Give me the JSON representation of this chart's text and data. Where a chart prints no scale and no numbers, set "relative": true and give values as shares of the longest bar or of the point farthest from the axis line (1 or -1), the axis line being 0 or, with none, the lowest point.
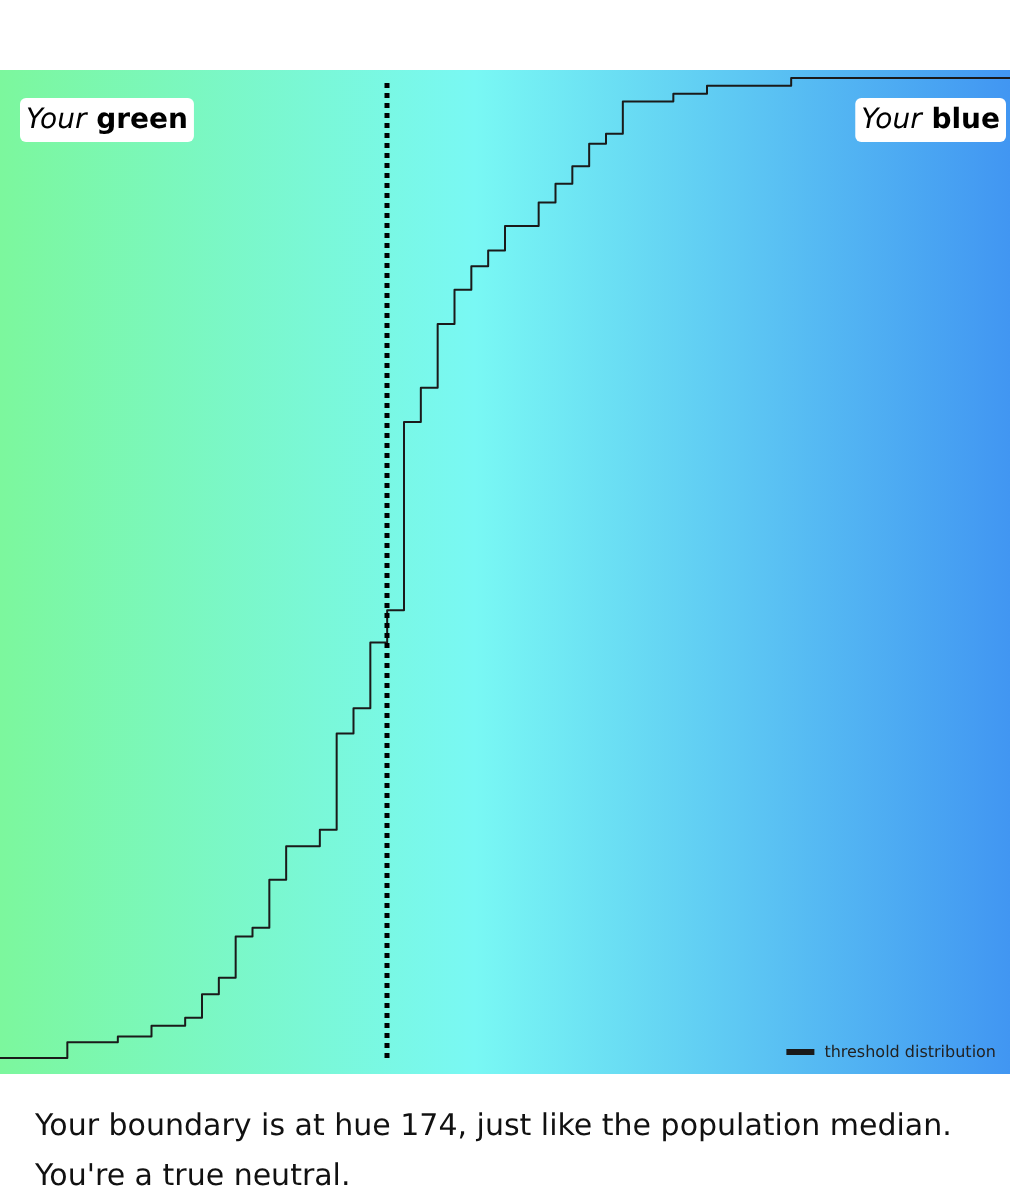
{
  "chart_data": {
    "type": "step",
    "relative": true,
    "tick_labels": false,
    "legend": "bottom right",
    "line_style": "solid",
    "categories": [
      null,
      null,
      null,
      null,
      null,
      null,
      null,
      null,
      null,
      null,
      null,
      null,
      null,
      null,
      null,
      null,
      null,
      null,
      null,
      null,
      null,
      null,
      null,
      null,
      null,
      null,
      null,
      null,
      null,
      null,
      null,
      null,
      null,
      null,
      null,
      null,
      null,
      null,
      null,
      null,
      null,
      null,
      null,
      null,
      null,
      null,
      null,
      null,
      null,
      null,
      null,
      null,
      null,
      null,
      null,
      null,
      null,
      null,
      null,
      null,
      null
    ],
    "series": [
      {
        "name": "threshold distribution",
        "color": "#1a1a1a",
        "values": [
          0,
          0,
          0,
          0,
          0.016,
          0.016,
          0.016,
          0.022,
          0.022,
          0.033,
          0.033,
          0.041,
          0.065,
          0.082,
          0.124,
          0.133,
          0.182,
          0.216,
          0.216,
          0.233,
          0.331,
          0.357,
          0.424,
          0.457,
          0.649,
          0.684,
          0.749,
          0.784,
          0.808,
          0.824,
          0.849,
          0.849,
          0.873,
          0.892,
          0.91,
          0.933,
          0.943,
          0.976,
          0.976,
          0.976,
          0.984,
          0.984,
          0.992,
          0.992,
          0.992,
          0.992,
          0.992,
          1,
          1,
          1,
          1,
          1,
          1,
          1,
          1,
          1,
          1,
          1,
          1,
          1,
          1
        ]
      }
    ],
    "annotations": [
      "Your green",
      "Your blue",
      "Your boundary is at hue 174, just like the population median. You're a true neutral."
    ]
  }
}
